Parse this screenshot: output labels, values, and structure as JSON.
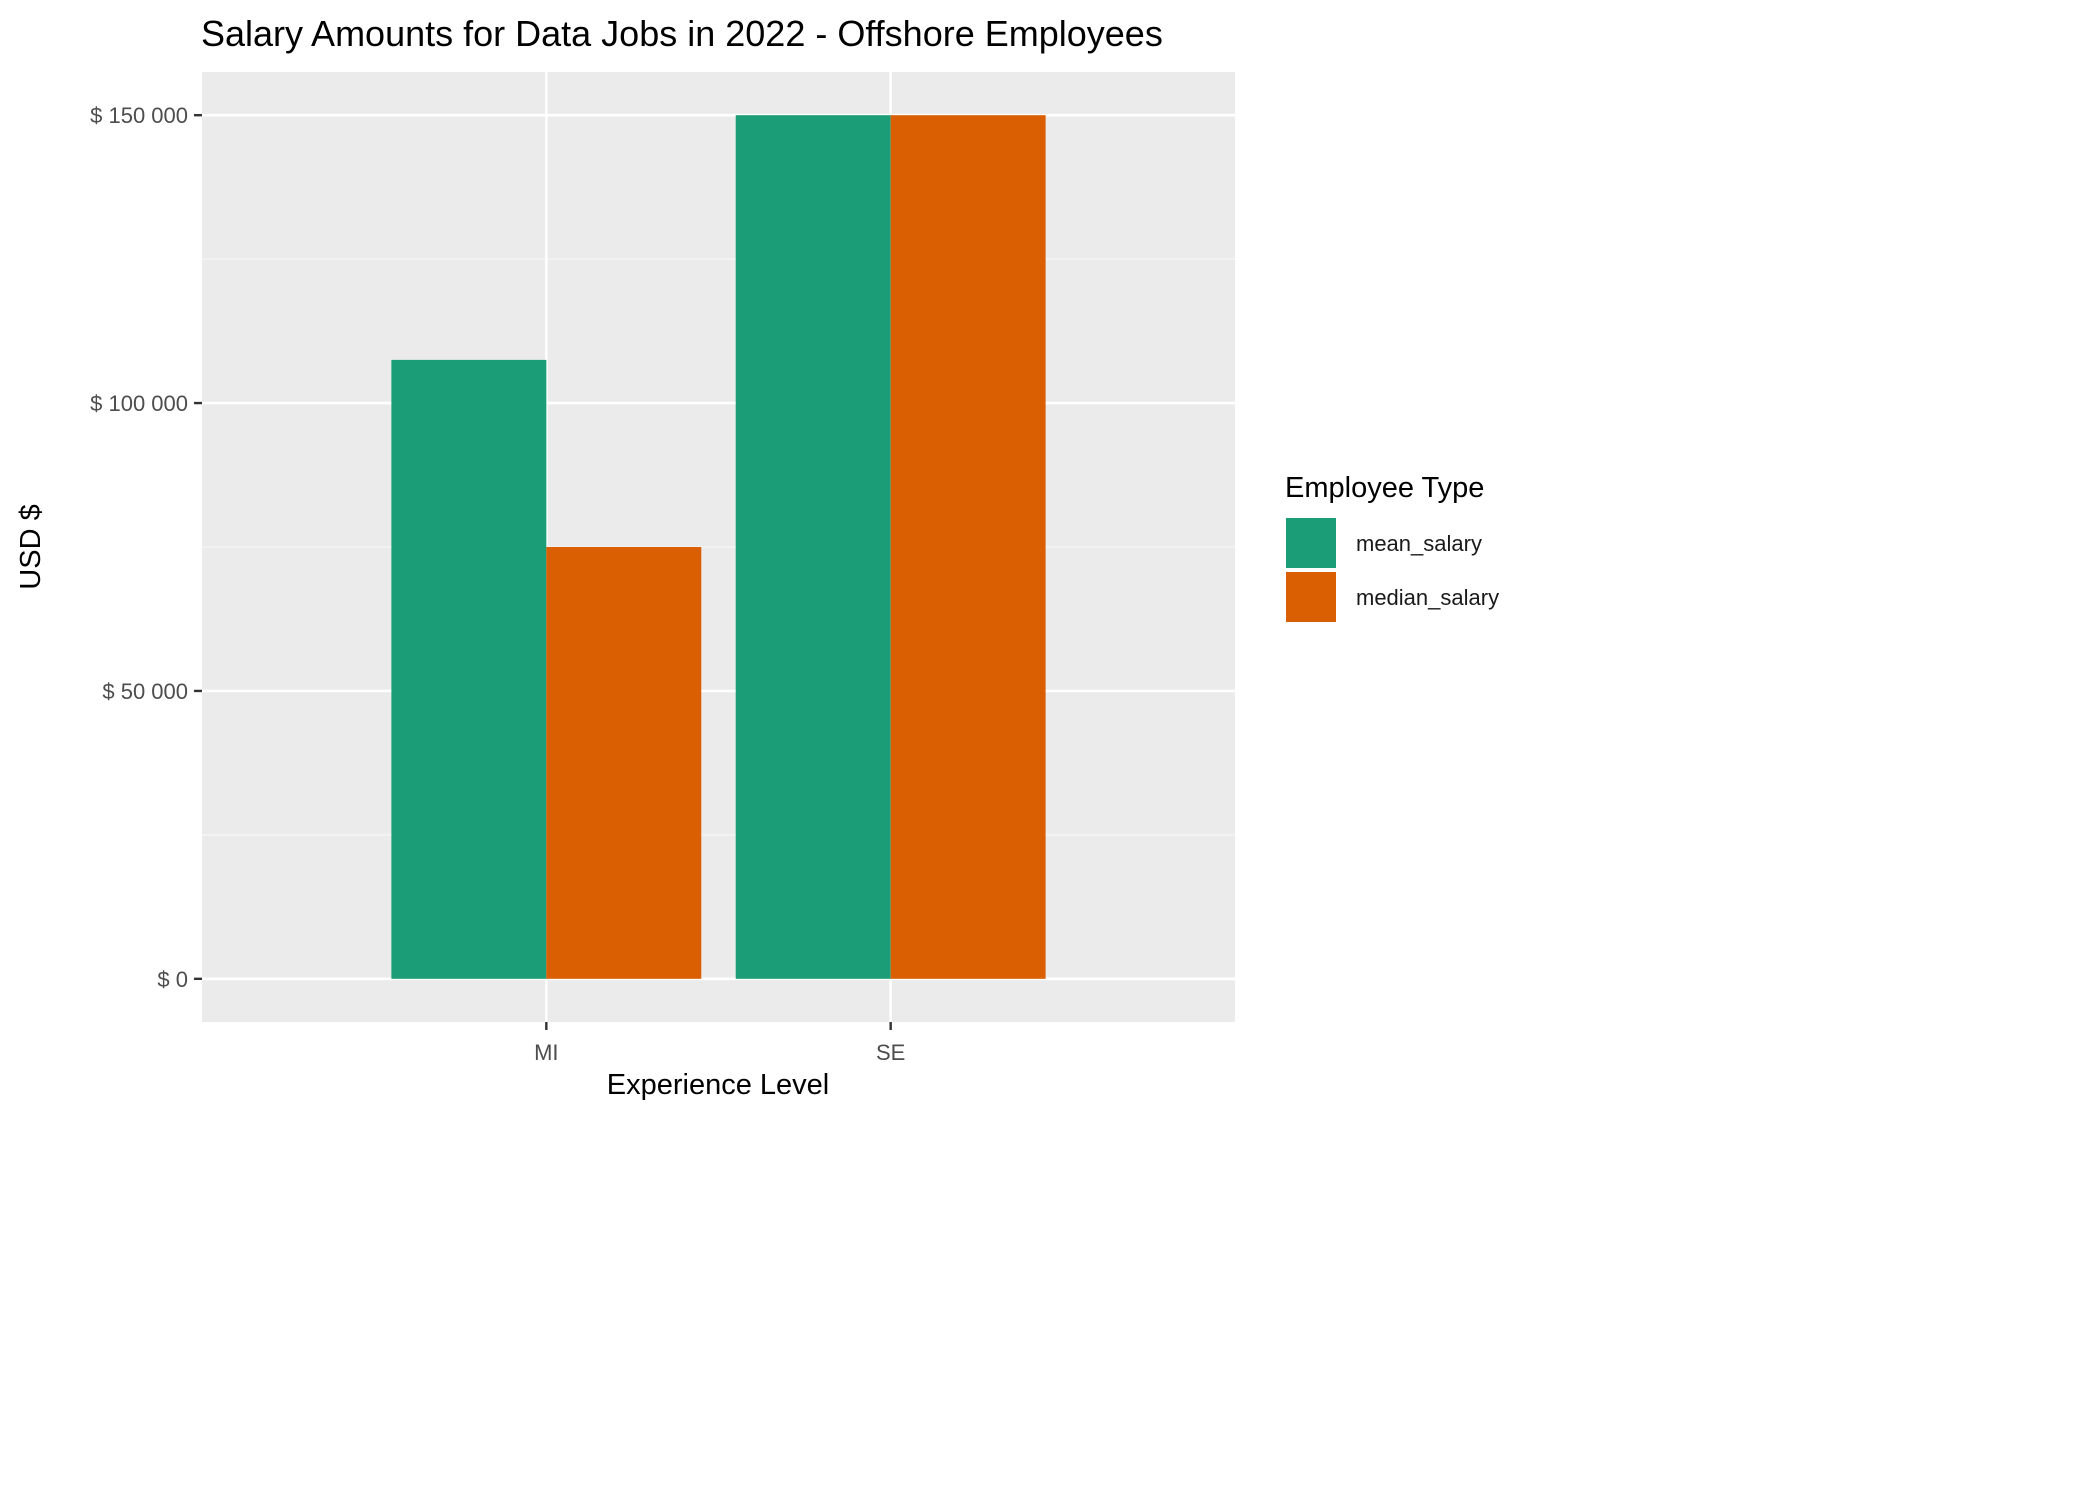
{
  "chart_data": {
    "type": "bar",
    "title": "Salary Amounts for Data Jobs in  2022  - Offshore Employees",
    "xlabel": "Experience Level",
    "ylabel": "USD $",
    "categories": [
      "MI",
      "SE"
    ],
    "series": [
      {
        "name": "mean_salary",
        "color": "#1b9e77",
        "values": [
          107500,
          150000
        ]
      },
      {
        "name": "median_salary",
        "color": "#d95f02",
        "values": [
          75000,
          150000
        ]
      }
    ],
    "ylim": [
      -7500,
      157500
    ],
    "yticks": [
      0,
      50000,
      100000,
      150000
    ],
    "ytick_labels": [
      "$ 0",
      "$ 50 000",
      "$ 100 000",
      "$ 150 000"
    ],
    "grid": true,
    "legend": {
      "title": "Employee Type",
      "placement": "right"
    }
  },
  "colors": {
    "panel_background": "#ebebeb",
    "grid_major": "#ffffff",
    "grid_minor": "#f7f7f7"
  }
}
